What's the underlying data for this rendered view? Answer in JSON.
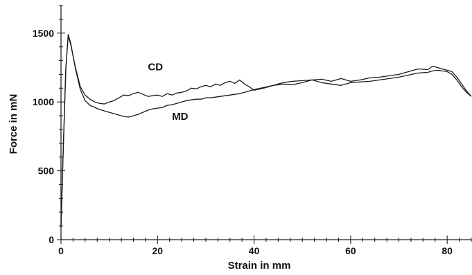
{
  "chart_data": {
    "type": "line",
    "title": "",
    "xlabel": "Strain in mm",
    "ylabel": "Force in mN",
    "xlim": [
      0,
      85
    ],
    "ylim": [
      0,
      1700
    ],
    "x_ticks": [
      0,
      20,
      40,
      60,
      80
    ],
    "x_tick_labels": [
      "0",
      "20",
      "40",
      "60",
      "80"
    ],
    "y_ticks": [
      0,
      500,
      1000,
      1500
    ],
    "y_tick_labels": [
      "0",
      "500",
      "1000",
      "1500"
    ],
    "grid": false,
    "legend": "none",
    "series": [
      {
        "name": "CD",
        "label_at": [
          18,
          1230
        ],
        "x": [
          0,
          0.5,
          1.0,
          1.5,
          2,
          3,
          4,
          5,
          6,
          7,
          8,
          9,
          10,
          11,
          12,
          13,
          14,
          15,
          16,
          17,
          18,
          19,
          20,
          21,
          22,
          23,
          24,
          25,
          26,
          27,
          28,
          29,
          30,
          31,
          32,
          33,
          34,
          35,
          36,
          37,
          38,
          39,
          40,
          42,
          44,
          46,
          48,
          50,
          52,
          54,
          56,
          58,
          60,
          62,
          64,
          66,
          68,
          70,
          72,
          74,
          76,
          77,
          78,
          79,
          80,
          81,
          82,
          83,
          84,
          85
        ],
        "y": [
          100,
          700,
          1250,
          1480,
          1420,
          1250,
          1110,
          1050,
          1020,
          1000,
          990,
          985,
          1000,
          1010,
          1030,
          1050,
          1045,
          1060,
          1070,
          1055,
          1040,
          1045,
          1050,
          1040,
          1060,
          1050,
          1065,
          1070,
          1080,
          1100,
          1095,
          1110,
          1120,
          1110,
          1130,
          1120,
          1140,
          1150,
          1135,
          1160,
          1130,
          1110,
          1085,
          1100,
          1120,
          1130,
          1125,
          1140,
          1160,
          1165,
          1150,
          1170,
          1150,
          1160,
          1175,
          1180,
          1190,
          1200,
          1220,
          1240,
          1235,
          1260,
          1250,
          1240,
          1230,
          1220,
          1180,
          1130,
          1080,
          1040
        ]
      },
      {
        "name": "MD",
        "label_at": [
          23,
          870
        ],
        "x": [
          0,
          0.5,
          1.0,
          1.5,
          2,
          3,
          4,
          5,
          6,
          7,
          8,
          9,
          10,
          11,
          12,
          13,
          14,
          15,
          16,
          17,
          18,
          19,
          20,
          21,
          22,
          23,
          24,
          25,
          26,
          27,
          28,
          29,
          30,
          31,
          32,
          33,
          34,
          35,
          36,
          37,
          38,
          39,
          40,
          42,
          44,
          46,
          48,
          50,
          52,
          54,
          56,
          58,
          60,
          62,
          64,
          66,
          68,
          70,
          72,
          74,
          76,
          77,
          78,
          79,
          80,
          81,
          82,
          83,
          84,
          85
        ],
        "y": [
          90,
          690,
          1240,
          1490,
          1430,
          1240,
          1090,
          1010,
          975,
          960,
          945,
          935,
          925,
          915,
          905,
          895,
          890,
          900,
          910,
          925,
          940,
          950,
          955,
          960,
          975,
          980,
          990,
          1000,
          1010,
          1015,
          1020,
          1020,
          1030,
          1030,
          1035,
          1040,
          1045,
          1050,
          1055,
          1060,
          1070,
          1080,
          1090,
          1105,
          1120,
          1140,
          1150,
          1155,
          1160,
          1140,
          1130,
          1120,
          1140,
          1145,
          1150,
          1160,
          1170,
          1180,
          1195,
          1210,
          1215,
          1225,
          1230,
          1225,
          1220,
          1200,
          1160,
          1110,
          1070,
          1040
        ]
      }
    ]
  }
}
